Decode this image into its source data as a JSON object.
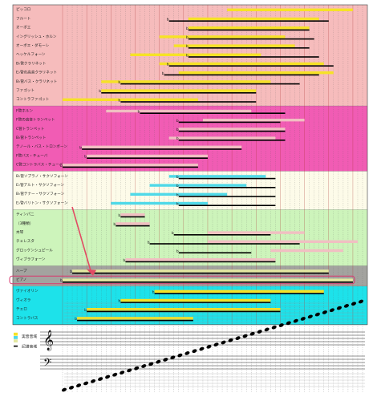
{
  "x_scale": {
    "min": 0,
    "max": 62,
    "major_every": 5
  },
  "colors": {
    "written_range": "#000000",
    "highlight_box": "#d9376e",
    "arrow": "#e24b64",
    "sound_range_by_group": {
      "woodwinds": "#f6e226",
      "brass": "#f1bfc2",
      "saxophones": "#4fd9e8",
      "percussion": "#f1bfc2",
      "harp_piano": "#e3e8a0",
      "strings": "#f6e226"
    }
  },
  "sections": [
    {
      "id": "woodwinds",
      "bg": "#f6bcbc",
      "instruments": [
        {
          "label": "ピッコロ",
          "sound": [
            34,
            60
          ],
          "written": []
        },
        {
          "label": "フルート",
          "sound": [
            26,
            53
          ],
          "written": [
            22,
            55
          ]
        },
        {
          "label": "オーボエ",
          "sound": [
            26,
            51
          ],
          "written": [
            26,
            51
          ]
        },
        {
          "label": "イングリッシュ・ホルン",
          "sound": [
            20,
            46
          ],
          "written": [
            26,
            52
          ]
        },
        {
          "label": "オーボエ・ダモーレ",
          "sound": [
            23,
            48
          ],
          "written": [
            26,
            51
          ]
        },
        {
          "label": "ヘッケルフォーン",
          "sound": [
            14,
            41
          ],
          "written": [
            26,
            53
          ]
        },
        {
          "label": "B♭管クラリネット",
          "sound": [
            20,
            54
          ],
          "written": [
            22,
            56
          ]
        },
        {
          "label": "E♭管の高音クラリネット",
          "sound": [
            24,
            56
          ],
          "written": [
            21,
            53
          ]
        },
        {
          "label": "B♭管バス・クラリネット",
          "sound": [
            8,
            43
          ],
          "written": [
            12,
            49
          ]
        },
        {
          "label": "ファゴット",
          "sound": [
            8,
            40
          ],
          "written": [
            8,
            40
          ]
        },
        {
          "label": "コントラファゴット",
          "sound": [
            0,
            28
          ],
          "written": [
            12,
            40
          ]
        }
      ]
    },
    {
      "id": "brass",
      "bg": "#f15cb4",
      "instruments": [
        {
          "label": "F管ホルン",
          "sound": [
            9,
            39
          ],
          "written": [
            16,
            46
          ]
        },
        {
          "label": "F管の高音トランペット",
          "sound": [
            29,
            50
          ],
          "written": [
            24,
            45
          ]
        },
        {
          "label": "C管トランペット",
          "sound": [
            24,
            46
          ],
          "written": [
            24,
            46
          ]
        },
        {
          "label": "B♭管トランペット",
          "sound": [
            22,
            44
          ],
          "written": [
            24,
            46
          ]
        },
        {
          "label": "テノール・バス・トロンボーン",
          "sound": [
            4,
            37
          ],
          "written": [
            4,
            37
          ]
        },
        {
          "label": "F管バス・チューバ",
          "sound": [
            5,
            30
          ],
          "written": [
            5,
            30
          ]
        },
        {
          "label": "C管コントラバス・チューバ",
          "sound": [
            0,
            28
          ],
          "written": [
            0,
            28
          ]
        }
      ]
    },
    {
      "id": "saxophones",
      "bg": "#fdfbe9",
      "instruments": [
        {
          "label": "B♭管ソプラノ・サクソフォーン",
          "sound": [
            22,
            42
          ],
          "written": [
            24,
            44
          ]
        },
        {
          "label": "E♭管アルト・サクソフォーン",
          "sound": [
            18,
            38
          ],
          "written": [
            24,
            44
          ]
        },
        {
          "label": "B♭管テナー・サクソフォーン",
          "sound": [
            14,
            34
          ],
          "written": [
            24,
            44
          ]
        },
        {
          "label": "E♭管バリトン・サクソフォーン",
          "sound": [
            10,
            30
          ],
          "written": [
            24,
            44
          ]
        }
      ]
    },
    {
      "id": "percussion",
      "bg": "#cdf4bb",
      "instruments": [
        {
          "label": "ティンパニ",
          "sound": [
            12,
            17
          ],
          "written": [
            12,
            17
          ]
        },
        {
          "label": "（3種類）",
          "sound": [
            11,
            18
          ],
          "written": [
            11,
            18
          ]
        },
        {
          "label": "木琴",
          "sound": [
            30,
            50
          ],
          "written": [
            23,
            43
          ]
        },
        {
          "label": "チェレスタ",
          "sound": [
            30,
            61
          ],
          "written": [
            18,
            49
          ]
        },
        {
          "label": "グロッケンシュピール",
          "sound": [
            43,
            58
          ],
          "written": [
            24,
            39
          ]
        },
        {
          "label": "ヴィブラフォーン",
          "sound": [
            13,
            44
          ],
          "written": [
            13,
            44
          ]
        }
      ]
    },
    {
      "id": "harp_piano",
      "bg": "#a3a39f",
      "instruments": [
        {
          "label": "ハープ",
          "sound": [
            2,
            55
          ],
          "written": [
            2,
            55
          ]
        },
        {
          "label": "ピアノ",
          "sound": [
            0,
            60
          ],
          "written": [
            0,
            60
          ],
          "highlight": true
        }
      ]
    },
    {
      "id": "strings",
      "bg": "#1de2ea",
      "instruments": [
        {
          "label": "ヴァイオリン",
          "sound": [
            19,
            54
          ],
          "written": [
            19,
            54
          ]
        },
        {
          "label": "ヴィオラ",
          "sound": [
            12,
            43
          ],
          "written": [
            12,
            43
          ]
        },
        {
          "label": "チェロ",
          "sound": [
            5,
            45
          ],
          "written": [
            5,
            45
          ]
        },
        {
          "label": "コントラバス",
          "sound": [
            3,
            27
          ],
          "written": [
            3,
            27
          ]
        }
      ]
    }
  ],
  "legend": {
    "sounding_label": "実音音域",
    "written_label": "記譜音域",
    "swatches": [
      "#f6e226",
      "#4fd9e8",
      "#e3e8a0"
    ]
  },
  "keyboard_ramp": {
    "steps": 42
  }
}
